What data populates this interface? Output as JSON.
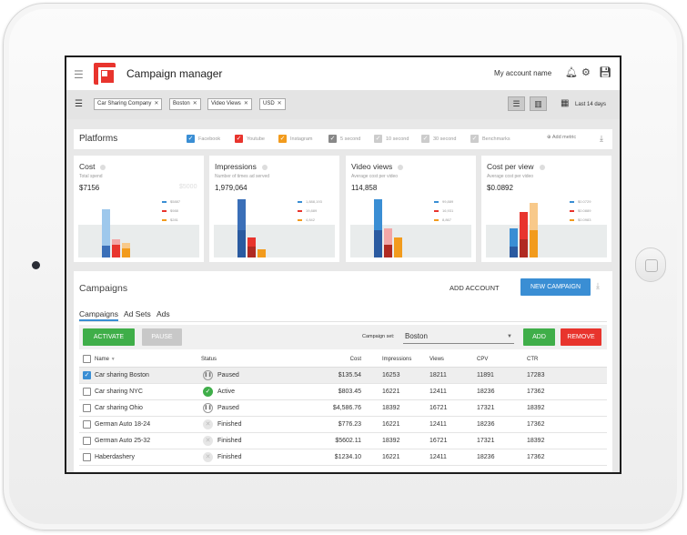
{
  "app": {
    "title": "Campaign manager",
    "account_name": "My account name"
  },
  "icons": {
    "menu": "hamburger-icon",
    "notifications": "bell-icon",
    "settings": "gear-icon",
    "save": "save-icon",
    "filter": "filter-icon",
    "calendar": "calendar-icon",
    "download": "download-icon"
  },
  "filters": {
    "chips": [
      "Car Sharing Company",
      "Boston",
      "Video Views",
      "USD"
    ],
    "date_range": "Last 14 days"
  },
  "platforms": {
    "title": "Platforms",
    "items": [
      {
        "label": "Facebook",
        "color": "#3a8ed4",
        "checked": true
      },
      {
        "label": "Youtube",
        "color": "#e8342d",
        "checked": true
      },
      {
        "label": "Instagram",
        "color": "#f29b1d",
        "checked": true
      },
      {
        "label": "5 second",
        "color": "#888888",
        "checked": true
      },
      {
        "label": "10 second",
        "color": "#cccccc",
        "checked": true
      },
      {
        "label": "30 second",
        "color": "#cccccc",
        "checked": true
      },
      {
        "label": "Benchmarks",
        "color": "#cccccc",
        "checked": true
      }
    ],
    "add_metric": "Add metric"
  },
  "metrics": [
    {
      "title": "Cost",
      "subtitle": "Total spend",
      "value": "$7156",
      "max": "$5000",
      "legend": [
        "$5887",
        "$988",
        "$281"
      ]
    },
    {
      "title": "Impressions",
      "subtitle": "Number of times ad served",
      "value": "1,979,064",
      "max": "",
      "legend": [
        "1,888,193",
        "19,889",
        "4,842"
      ]
    },
    {
      "title": "Video views",
      "subtitle": "Average cost per video",
      "value": "114,858",
      "max": "",
      "legend": [
        "99,889",
        "16,931",
        "8,867"
      ]
    },
    {
      "title": "Cost per view",
      "subtitle": "Average cost per video",
      "value": "$0.0892",
      "max": "",
      "legend": [
        "$0.0729",
        "$0.0889",
        "$0.0983"
      ]
    }
  ],
  "campaigns": {
    "title": "Campaigns",
    "add_account": "ADD ACCOUNT",
    "new_campaign": "NEW CAMPAIGN",
    "tabs": [
      "Campaigns",
      "Ad Sets",
      "Ads"
    ],
    "activate": "ACTIVATE",
    "pause": "PAUSE",
    "campaign_set_label": "Campaign set:",
    "campaign_set_value": "Boston",
    "add": "ADD",
    "remove": "REMOVE",
    "columns": [
      "Name",
      "Status",
      "Cost",
      "Impressions",
      "Views",
      "CPV",
      "CTR"
    ],
    "rows": [
      {
        "name": "Car sharing Boston",
        "status": "Paused",
        "cost": "$135.54",
        "impressions": "16253",
        "views": "18211",
        "cpv": "11891",
        "ctr": "17283",
        "selected": true
      },
      {
        "name": "Car sharing NYC",
        "status": "Active",
        "cost": "$803.45",
        "impressions": "16221",
        "views": "12411",
        "cpv": "18236",
        "ctr": "17362",
        "selected": false
      },
      {
        "name": "Car sharing Ohio",
        "status": "Paused",
        "cost": "$4,586.76",
        "impressions": "18392",
        "views": "16721",
        "cpv": "17321",
        "ctr": "18392",
        "selected": false
      },
      {
        "name": "German Auto 18-24",
        "status": "Finished",
        "cost": "$776.23",
        "impressions": "16221",
        "views": "12411",
        "cpv": "18236",
        "ctr": "17362",
        "selected": false
      },
      {
        "name": "German Auto 25-32",
        "status": "Finished",
        "cost": "$5602.11",
        "impressions": "18392",
        "views": "16721",
        "cpv": "17321",
        "ctr": "18392",
        "selected": false
      },
      {
        "name": "Haberdashery",
        "status": "Finished",
        "cost": "$1234.10",
        "impressions": "16221",
        "views": "12411",
        "cpv": "18236",
        "ctr": "17362",
        "selected": false
      }
    ]
  }
}
